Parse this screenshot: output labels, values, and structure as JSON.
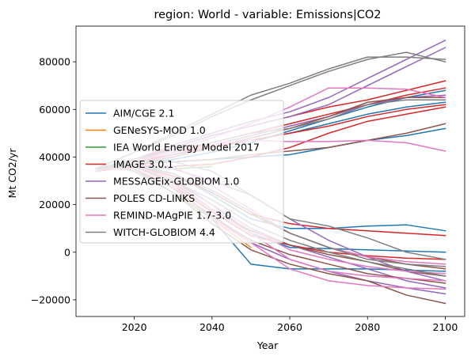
{
  "chart_data": {
    "type": "line",
    "title": "region: World - variable: Emissions|CO2",
    "xlabel": "Year",
    "ylabel": "Mt CO2/yr",
    "xlim": [
      2005,
      2105
    ],
    "ylim": [
      -27000,
      95000
    ],
    "xticks": [
      2020,
      2040,
      2060,
      2080,
      2100
    ],
    "yticks": [
      -20000,
      0,
      20000,
      40000,
      60000,
      80000
    ],
    "ytick_labels": [
      "−20000",
      "0",
      "20000",
      "40000",
      "60000",
      "80000"
    ],
    "grid": false,
    "legend_position": "center-left",
    "legend": [
      {
        "name": "AIM/CGE 2.1",
        "color": "#1f77b4"
      },
      {
        "name": "GENeSYS-MOD 1.0",
        "color": "#ff7f0e"
      },
      {
        "name": "IEA World Energy Model 2017",
        "color": "#2ca02c"
      },
      {
        "name": "IMAGE 3.0.1",
        "color": "#d62728"
      },
      {
        "name": "MESSAGEix-GLOBIOM 1.0",
        "color": "#9467bd"
      },
      {
        "name": "POLES CD-LINKS",
        "color": "#8c564b"
      },
      {
        "name": "REMIND-MAgPIE 1.7-3.0",
        "color": "#e377c2"
      },
      {
        "name": "WITCH-GLOBIOM 4.4",
        "color": "#7f7f7f"
      }
    ],
    "series": [
      {
        "model": "AIM/CGE 2.1",
        "color": "#1f77b4",
        "x": [
          2010,
          2020,
          2030,
          2040,
          2050,
          2060,
          2070,
          2080,
          2090,
          2100
        ],
        "y": [
          35000,
          37000,
          38000,
          39000,
          40000,
          41000,
          44000,
          47000,
          49000,
          52000
        ]
      },
      {
        "model": "AIM/CGE 2.1",
        "color": "#1f77b4",
        "x": [
          2010,
          2020,
          2030,
          2040,
          2050,
          2060,
          2070,
          2080,
          2090,
          2100
        ],
        "y": [
          35000,
          38000,
          41000,
          44000,
          47000,
          50000,
          54000,
          58000,
          61000,
          63000
        ]
      },
      {
        "model": "AIM/CGE 2.1",
        "color": "#1f77b4",
        "x": [
          2010,
          2020,
          2030,
          2040,
          2050,
          2060,
          2070,
          2080,
          2090,
          2100
        ],
        "y": [
          35000,
          36000,
          33000,
          24000,
          14000,
          10000,
          10000,
          11000,
          11500,
          9000
        ]
      },
      {
        "model": "AIM/CGE 2.1",
        "color": "#1f77b4",
        "x": [
          2010,
          2020,
          2030,
          2040,
          2050,
          2060,
          2070,
          2080,
          2090,
          2100
        ],
        "y": [
          35000,
          35000,
          28000,
          14000,
          -5000,
          -7000,
          -7000,
          -7000,
          -7500,
          -8000
        ]
      },
      {
        "model": "AIM/CGE 2.1",
        "color": "#1f77b4",
        "x": [
          2010,
          2020,
          2030,
          2040,
          2050,
          2060,
          2070,
          2080,
          2090,
          2100
        ],
        "y": [
          35000,
          36000,
          30000,
          20000,
          8000,
          2000,
          1500,
          1000,
          500,
          0
        ]
      },
      {
        "model": "AIM/CGE 2.1",
        "color": "#1f77b4",
        "x": [
          2010,
          2020,
          2030,
          2040,
          2050,
          2060,
          2070,
          2080,
          2090,
          2100
        ],
        "y": [
          35000,
          37000,
          39000,
          42000,
          46000,
          51000,
          56000,
          61000,
          65000,
          68000
        ]
      },
      {
        "model": "GENeSYS-MOD 1.0",
        "color": "#ff7f0e",
        "x": [
          2015,
          2020,
          2030,
          2040,
          2050
        ],
        "y": [
          36000,
          35000,
          27000,
          14000,
          2000
        ]
      },
      {
        "model": "IEA World Energy Model 2017",
        "color": "#2ca02c",
        "x": [
          2015,
          2020,
          2030,
          2040
        ],
        "y": [
          36000,
          36000,
          35000,
          36000
        ]
      },
      {
        "model": "IEA World Energy Model 2017",
        "color": "#2ca02c",
        "x": [
          2015,
          2020,
          2030,
          2040
        ],
        "y": [
          36000,
          34000,
          25000,
          14000
        ]
      },
      {
        "model": "IMAGE 3.0.1",
        "color": "#d62728",
        "x": [
          2010,
          2020,
          2030,
          2040,
          2050,
          2060,
          2070,
          2080,
          2090,
          2100
        ],
        "y": [
          35000,
          38000,
          41000,
          44000,
          47000,
          50000,
          53000,
          57000,
          60000,
          62000
        ]
      },
      {
        "model": "IMAGE 3.0.1",
        "color": "#d62728",
        "x": [
          2010,
          2020,
          2030,
          2040,
          2050,
          2060,
          2070,
          2080,
          2090,
          2100
        ],
        "y": [
          34000,
          38000,
          42000,
          46000,
          50000,
          54000,
          58000,
          62000,
          66000,
          69000
        ]
      },
      {
        "model": "IMAGE 3.0.1",
        "color": "#d62728",
        "x": [
          2010,
          2020,
          2030,
          2040,
          2050,
          2060,
          2070,
          2080,
          2090,
          2100
        ],
        "y": [
          35000,
          39000,
          44000,
          49000,
          53000,
          57000,
          61000,
          64000,
          68000,
          72000
        ]
      },
      {
        "model": "IMAGE 3.0.1",
        "color": "#d62728",
        "x": [
          2010,
          2020,
          2030,
          2040,
          2050,
          2060,
          2070,
          2080,
          2090,
          2100
        ],
        "y": [
          34000,
          36000,
          36000,
          37000,
          40000,
          44000,
          50000,
          55000,
          58000,
          61000
        ]
      },
      {
        "model": "IMAGE 3.0.1",
        "color": "#d62728",
        "x": [
          2010,
          2020,
          2030,
          2040,
          2050,
          2060,
          2070,
          2080,
          2090,
          2100
        ],
        "y": [
          35000,
          36000,
          32000,
          25000,
          16000,
          12000,
          10000,
          9000,
          8000,
          7000
        ]
      },
      {
        "model": "IMAGE 3.0.1",
        "color": "#d62728",
        "x": [
          2010,
          2020,
          2030,
          2040,
          2050,
          2060,
          2070,
          2080,
          2090,
          2100
        ],
        "y": [
          35000,
          35000,
          28000,
          17000,
          7000,
          3000,
          0,
          -1500,
          -2500,
          -3000
        ]
      },
      {
        "model": "MESSAGEix-GLOBIOM 1.0",
        "color": "#9467bd",
        "x": [
          2010,
          2020,
          2030,
          2040,
          2050,
          2060,
          2070,
          2080,
          2090,
          2100
        ],
        "y": [
          34000,
          39000,
          45000,
          50000,
          55000,
          59000,
          65000,
          73000,
          81000,
          89000
        ]
      },
      {
        "model": "MESSAGEix-GLOBIOM 1.0",
        "color": "#9467bd",
        "x": [
          2010,
          2020,
          2030,
          2040,
          2050,
          2060,
          2070,
          2080,
          2090,
          2100
        ],
        "y": [
          34000,
          38000,
          44000,
          49000,
          53000,
          57000,
          62000,
          70000,
          78000,
          86000
        ]
      },
      {
        "model": "MESSAGEix-GLOBIOM 1.0",
        "color": "#9467bd",
        "x": [
          2010,
          2020,
          2030,
          2040,
          2050,
          2060,
          2070,
          2080,
          2090,
          2100
        ],
        "y": [
          35000,
          37000,
          41000,
          45000,
          49000,
          53000,
          57000,
          62000,
          65000,
          66000
        ]
      },
      {
        "model": "MESSAGEix-GLOBIOM 1.0",
        "color": "#9467bd",
        "x": [
          2010,
          2020,
          2030,
          2040,
          2050,
          2060,
          2070,
          2080,
          2090,
          2100
        ],
        "y": [
          35000,
          37000,
          35000,
          30000,
          24000,
          14000,
          5000,
          -2000,
          -8000,
          -12000
        ]
      },
      {
        "model": "MESSAGEix-GLOBIOM 1.0",
        "color": "#9467bd",
        "x": [
          2010,
          2020,
          2030,
          2040,
          2050,
          2060,
          2070,
          2080,
          2090,
          2100
        ],
        "y": [
          35000,
          36000,
          30000,
          20000,
          10000,
          3000,
          -2000,
          -7000,
          -12000,
          -15000
        ]
      },
      {
        "model": "MESSAGEix-GLOBIOM 1.0",
        "color": "#9467bd",
        "x": [
          2010,
          2020,
          2030,
          2040,
          2050,
          2060,
          2070,
          2080,
          2090,
          2100
        ],
        "y": [
          35000,
          35000,
          27000,
          15000,
          4000,
          -3000,
          -8000,
          -12000,
          -15000,
          -17500
        ]
      },
      {
        "model": "POLES CD-LINKS",
        "color": "#8c564b",
        "x": [
          2010,
          2020,
          2030,
          2040,
          2050,
          2060,
          2070,
          2080,
          2090,
          2100
        ],
        "y": [
          34000,
          37000,
          40000,
          44000,
          48000,
          52000,
          57000,
          63000,
          65000,
          65000
        ]
      },
      {
        "model": "POLES CD-LINKS",
        "color": "#8c564b",
        "x": [
          2010,
          2020,
          2030,
          2040,
          2050,
          2060,
          2070,
          2080,
          2090,
          2100
        ],
        "y": [
          34000,
          37000,
          38000,
          39000,
          41000,
          42500,
          44000,
          47000,
          50000,
          54000
        ]
      },
      {
        "model": "POLES CD-LINKS",
        "color": "#8c564b",
        "x": [
          2010,
          2020,
          2030,
          2040,
          2050,
          2060,
          2070,
          2080,
          2090,
          2100
        ],
        "y": [
          35000,
          37000,
          33000,
          25000,
          16000,
          8000,
          2000,
          -2000,
          -5000,
          -7000
        ]
      },
      {
        "model": "POLES CD-LINKS",
        "color": "#8c564b",
        "x": [
          2010,
          2020,
          2030,
          2040,
          2050,
          2060,
          2070,
          2080,
          2090,
          2100
        ],
        "y": [
          35000,
          36000,
          29000,
          18000,
          9000,
          3000,
          -1000,
          -4000,
          -8000,
          -10000
        ]
      },
      {
        "model": "POLES CD-LINKS",
        "color": "#8c564b",
        "x": [
          2010,
          2020,
          2030,
          2040,
          2050,
          2060,
          2070,
          2080,
          2090,
          2100
        ],
        "y": [
          35000,
          35000,
          27000,
          15000,
          5000,
          -1000,
          -5000,
          -9000,
          -11000,
          -13000
        ]
      },
      {
        "model": "POLES CD-LINKS",
        "color": "#8c564b",
        "x": [
          2010,
          2020,
          2030,
          2040,
          2050,
          2060,
          2070,
          2080,
          2090,
          2100
        ],
        "y": [
          35000,
          35000,
          25000,
          12000,
          1000,
          -5000,
          -9000,
          -12000,
          -18000,
          -21500
        ]
      },
      {
        "model": "REMIND-MAgPIE 1.7-3.0",
        "color": "#e377c2",
        "x": [
          2010,
          2020,
          2030,
          2040,
          2050,
          2060,
          2070,
          2080,
          2090,
          2100
        ],
        "y": [
          34000,
          38000,
          43000,
          48000,
          54000,
          61000,
          69000,
          69000,
          68500,
          65000
        ]
      },
      {
        "model": "REMIND-MAgPIE 1.7-3.0",
        "color": "#e377c2",
        "x": [
          2010,
          2020,
          2030,
          2040,
          2050,
          2060,
          2070,
          2080,
          2090,
          2100
        ],
        "y": [
          35000,
          38000,
          42000,
          45000,
          47000,
          46500,
          46500,
          47000,
          46000,
          42500
        ]
      },
      {
        "model": "REMIND-MAgPIE 1.7-3.0",
        "color": "#e377c2",
        "x": [
          2010,
          2020,
          2030,
          2040,
          2050,
          2060,
          2070,
          2080,
          2090,
          2100
        ],
        "y": [
          35000,
          37000,
          36000,
          28000,
          18000,
          8000,
          2000,
          -2000,
          -4000,
          -5000
        ]
      },
      {
        "model": "REMIND-MAgPIE 1.7-3.0",
        "color": "#e377c2",
        "x": [
          2010,
          2020,
          2030,
          2040,
          2050,
          2060,
          2070,
          2080,
          2090,
          2100
        ],
        "y": [
          35000,
          36000,
          31000,
          20000,
          10000,
          1000,
          -3000,
          -6000,
          -8000,
          -9000
        ]
      },
      {
        "model": "REMIND-MAgPIE 1.7-3.0",
        "color": "#e377c2",
        "x": [
          2010,
          2020,
          2030,
          2040,
          2050,
          2060,
          2070,
          2080,
          2090,
          2100
        ],
        "y": [
          35000,
          36000,
          30000,
          18000,
          8000,
          -3000,
          -8000,
          -10000,
          -11000,
          -12000
        ]
      },
      {
        "model": "REMIND-MAgPIE 1.7-3.0",
        "color": "#e377c2",
        "x": [
          2010,
          2020,
          2030,
          2040,
          2050,
          2060,
          2070,
          2080,
          2090,
          2100
        ],
        "y": [
          35000,
          35000,
          28000,
          14000,
          4000,
          -7000,
          -12000,
          -14000,
          -15000,
          -15500
        ]
      },
      {
        "model": "WITCH-GLOBIOM 4.4",
        "color": "#7f7f7f",
        "x": [
          2010,
          2020,
          2030,
          2040,
          2050,
          2060,
          2070,
          2080,
          2090,
          2100
        ],
        "y": [
          35000,
          42000,
          49000,
          57000,
          64000,
          70000,
          76000,
          81000,
          84000,
          80000
        ]
      },
      {
        "model": "WITCH-GLOBIOM 4.4",
        "color": "#7f7f7f",
        "x": [
          2010,
          2020,
          2030,
          2040,
          2050,
          2060,
          2070,
          2080,
          2090,
          2100
        ],
        "y": [
          35000,
          42000,
          50000,
          58000,
          66000,
          71000,
          77000,
          82000,
          82000,
          81000
        ]
      },
      {
        "model": "WITCH-GLOBIOM 4.4",
        "color": "#7f7f7f",
        "x": [
          2010,
          2020,
          2030,
          2040,
          2050,
          2060,
          2070,
          2080,
          2090,
          2100
        ],
        "y": [
          35000,
          39000,
          43000,
          46000,
          50000,
          52000,
          56000,
          62000,
          64000,
          64000
        ]
      },
      {
        "model": "WITCH-GLOBIOM 4.4",
        "color": "#7f7f7f",
        "x": [
          2010,
          2020,
          2030,
          2040,
          2050,
          2060,
          2070,
          2080,
          2090,
          2100
        ],
        "y": [
          35000,
          38000,
          38000,
          34000,
          24000,
          14000,
          11000,
          6000,
          0,
          -3000
        ]
      },
      {
        "model": "WITCH-GLOBIOM 4.4",
        "color": "#7f7f7f",
        "x": [
          2010,
          2020,
          2030,
          2040,
          2050,
          2060,
          2070,
          2080,
          2090,
          2100
        ],
        "y": [
          35000,
          37000,
          33000,
          26000,
          17000,
          8000,
          2000,
          -3000,
          -5000,
          -6000
        ]
      },
      {
        "model": "WITCH-GLOBIOM 4.4",
        "color": "#7f7f7f",
        "x": [
          2010,
          2020,
          2030,
          2040,
          2050,
          2060,
          2070,
          2080,
          2090,
          2100
        ],
        "y": [
          35000,
          36000,
          30000,
          22000,
          12000,
          5000,
          0,
          -4000,
          -7000,
          -10000
        ]
      }
    ]
  }
}
